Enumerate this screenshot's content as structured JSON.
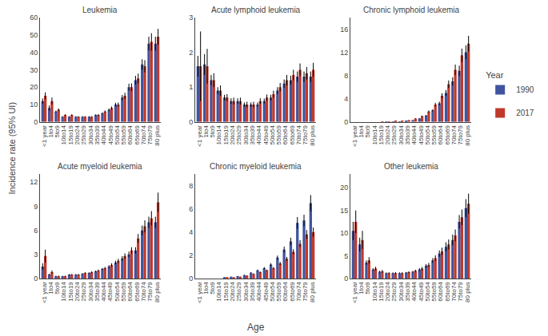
{
  "xlabel": "Age",
  "ylabel": "Incidence rate (95% UI)",
  "legend_title": "Year",
  "legend": "right",
  "grid": false,
  "chart_data": [
    {
      "type": "bar",
      "title": "Leukemia",
      "categories": [
        "<1 year",
        "1to4",
        "5to9",
        "10to14",
        "15to19",
        "20to24",
        "25to29",
        "30to34",
        "35to39",
        "40to44",
        "45to49",
        "50to54",
        "55to59",
        "60to64",
        "65to69",
        "70to74",
        "75to79",
        "80 plus"
      ],
      "ylim": [
        0,
        60
      ],
      "yticks": [
        0,
        10,
        20,
        30,
        40,
        50,
        60
      ],
      "series": [
        {
          "name": "1990",
          "color": "#4055A0",
          "values": [
            12,
            8,
            6,
            3,
            3,
            3,
            3,
            3,
            4,
            5,
            7,
            10,
            14,
            20,
            24,
            33,
            45,
            45
          ],
          "errors": [
            1.5,
            1.5,
            0.5,
            0.3,
            0.3,
            0.3,
            0.3,
            0.3,
            0.4,
            0.5,
            0.7,
            1.0,
            1.5,
            2.0,
            2.5,
            3.0,
            4.0,
            4.0
          ]
        },
        {
          "name": "2017",
          "color": "#C0392B",
          "values": [
            15,
            12,
            7,
            4,
            4,
            3,
            3,
            3,
            4,
            6,
            8,
            10,
            15,
            20,
            25,
            32,
            46,
            49
          ],
          "errors": [
            2.0,
            2.0,
            0.8,
            0.4,
            0.4,
            0.3,
            0.3,
            0.3,
            0.5,
            0.6,
            0.9,
            1.2,
            1.8,
            2.2,
            2.8,
            3.5,
            5.0,
            4.5
          ]
        }
      ]
    },
    {
      "type": "bar",
      "title": "Acute lymphoid leukemia",
      "categories": [
        "<1 year",
        "1to4",
        "5to9",
        "10to14",
        "15to19",
        "20to24",
        "25to29",
        "30to34",
        "35to39",
        "40to44",
        "45to49",
        "50to54",
        "55to59",
        "60to64",
        "65to69",
        "70to74",
        "75to79",
        "80 plus"
      ],
      "ylim": [
        0,
        3
      ],
      "yticks": [
        0,
        1,
        2,
        3
      ],
      "series": [
        {
          "name": "1990",
          "color": "#4055A0",
          "values": [
            1.6,
            1.65,
            1.2,
            0.9,
            0.7,
            0.6,
            0.6,
            0.5,
            0.5,
            0.5,
            0.6,
            0.7,
            0.9,
            1.1,
            1.2,
            1.3,
            1.3,
            1.3
          ],
          "errors": [
            0.3,
            0.3,
            0.15,
            0.1,
            0.08,
            0.08,
            0.08,
            0.06,
            0.06,
            0.06,
            0.07,
            0.08,
            0.1,
            0.12,
            0.13,
            0.15,
            0.15,
            0.15
          ]
        },
        {
          "name": "2017",
          "color": "#C0392B",
          "values": [
            1.6,
            1.6,
            1.2,
            0.9,
            0.7,
            0.6,
            0.6,
            0.5,
            0.5,
            0.6,
            0.7,
            0.8,
            1.0,
            1.2,
            1.35,
            1.5,
            1.4,
            1.5
          ],
          "errors": [
            1.0,
            0.5,
            0.2,
            0.15,
            0.1,
            0.1,
            0.1,
            0.08,
            0.08,
            0.08,
            0.09,
            0.1,
            0.12,
            0.15,
            0.15,
            0.18,
            0.18,
            0.2
          ]
        }
      ]
    },
    {
      "type": "bar",
      "title": "Chronic lymphoid leukemia",
      "categories": [
        "<1 year",
        "1to4",
        "5to9",
        "10to14",
        "15to19",
        "20to24",
        "25to29",
        "30to34",
        "35to39",
        "40to44",
        "45to49",
        "50to54",
        "55to59",
        "60to64",
        "65to69",
        "70to74",
        "75to79",
        "80 plus"
      ],
      "ylim": [
        0,
        18
      ],
      "yticks": [
        0,
        4,
        8,
        12,
        16
      ],
      "series": [
        {
          "name": "1990",
          "color": "#4055A0",
          "values": [
            0,
            0,
            0,
            0,
            0,
            0.05,
            0.1,
            0.1,
            0.2,
            0.3,
            0.6,
            1.1,
            2.0,
            3.2,
            5.0,
            7.0,
            8.8,
            12.0
          ],
          "errors": [
            0,
            0,
            0,
            0,
            0,
            0,
            0.01,
            0.01,
            0.02,
            0.03,
            0.06,
            0.1,
            0.2,
            0.3,
            0.5,
            0.7,
            0.9,
            1.2
          ]
        },
        {
          "name": "2017",
          "color": "#C0392B",
          "values": [
            0,
            0,
            0,
            0,
            0.05,
            0.1,
            0.15,
            0.2,
            0.3,
            0.6,
            1.0,
            1.8,
            3.0,
            4.5,
            6.5,
            9.0,
            11.5,
            13.5
          ],
          "errors": [
            0,
            0,
            0,
            0,
            0.005,
            0.01,
            0.015,
            0.02,
            0.03,
            0.06,
            0.1,
            0.18,
            0.3,
            0.45,
            0.65,
            0.9,
            1.15,
            1.35
          ]
        }
      ]
    },
    {
      "type": "bar",
      "title": "Acute myeloid leukemia",
      "categories": [
        "<1 year",
        "1to4",
        "5to9",
        "10to14",
        "15to19",
        "20to24",
        "25to29",
        "30to34",
        "35to39",
        "40to44",
        "45to49",
        "50to54",
        "55to59",
        "60to64",
        "65to69",
        "70to74",
        "75to79",
        "80 plus"
      ],
      "ylim": [
        0,
        13
      ],
      "yticks": [
        0,
        3,
        6,
        9,
        12
      ],
      "series": [
        {
          "name": "1990",
          "color": "#4055A0",
          "values": [
            1.5,
            0.5,
            0.3,
            0.3,
            0.5,
            0.5,
            0.6,
            0.7,
            0.9,
            1.2,
            1.5,
            2.0,
            2.5,
            3.0,
            3.5,
            6.0,
            7.0,
            7.0
          ],
          "errors": [
            0.4,
            0.1,
            0.05,
            0.04,
            0.06,
            0.06,
            0.07,
            0.08,
            0.1,
            0.13,
            0.18,
            0.22,
            0.28,
            0.35,
            0.4,
            0.6,
            0.7,
            0.7
          ]
        },
        {
          "name": "2017",
          "color": "#C0392B",
          "values": [
            2.8,
            0.8,
            0.3,
            0.3,
            0.5,
            0.5,
            0.7,
            0.8,
            1.0,
            1.3,
            1.7,
            2.2,
            2.8,
            3.5,
            5.0,
            6.5,
            7.5,
            9.5
          ],
          "errors": [
            0.8,
            0.2,
            0.06,
            0.05,
            0.07,
            0.07,
            0.09,
            0.1,
            0.12,
            0.15,
            0.2,
            0.26,
            0.33,
            0.4,
            0.55,
            0.75,
            0.9,
            1.2
          ]
        }
      ]
    },
    {
      "type": "bar",
      "title": "Chronic myeloid leukemia",
      "categories": [
        "<1 year",
        "1to4",
        "5to9",
        "10to14",
        "15to19",
        "20to24",
        "25to29",
        "30to34",
        "35to39",
        "40to44",
        "45to49",
        "50to54",
        "55to59",
        "60to64",
        "65to69",
        "70to74",
        "75to79",
        "80 plus"
      ],
      "ylim": [
        0,
        9
      ],
      "yticks": [
        0,
        2,
        4,
        6,
        8
      ],
      "series": [
        {
          "name": "1990",
          "color": "#4055A0",
          "values": [
            0,
            0,
            0,
            0,
            0.1,
            0.15,
            0.2,
            0.3,
            0.5,
            0.7,
            0.9,
            1.2,
            1.8,
            2.5,
            3.2,
            4.8,
            5.0,
            6.5
          ],
          "errors": [
            0,
            0,
            0,
            0,
            0.01,
            0.015,
            0.02,
            0.03,
            0.05,
            0.07,
            0.09,
            0.12,
            0.18,
            0.25,
            0.32,
            0.5,
            0.5,
            0.7
          ]
        },
        {
          "name": "2017",
          "color": "#C0392B",
          "values": [
            0,
            0,
            0,
            0,
            0.08,
            0.1,
            0.15,
            0.25,
            0.4,
            0.55,
            0.7,
            0.9,
            1.3,
            1.7,
            2.3,
            3.0,
            3.8,
            4.0
          ],
          "errors": [
            0,
            0,
            0,
            0,
            0.01,
            0.01,
            0.015,
            0.025,
            0.04,
            0.055,
            0.07,
            0.09,
            0.13,
            0.17,
            0.23,
            0.3,
            0.38,
            0.4
          ]
        }
      ]
    },
    {
      "type": "bar",
      "title": "Other leukemia",
      "categories": [
        "<1 year",
        "1to4",
        "5to9",
        "10to14",
        "15to19",
        "20to24",
        "25to29",
        "30to34",
        "35to39",
        "40to44",
        "45to49",
        "50to54",
        "55to59",
        "60to64",
        "65to69",
        "70to74",
        "75to79",
        "80 plus"
      ],
      "ylim": [
        0,
        23
      ],
      "yticks": [
        0,
        5,
        10,
        15,
        20
      ],
      "series": [
        {
          "name": "1990",
          "color": "#4055A0",
          "values": [
            10.5,
            7.5,
            3.5,
            2.0,
            1.5,
            1.2,
            1.2,
            1.2,
            1.3,
            1.5,
            2.0,
            2.8,
            4.0,
            5.5,
            7.0,
            8.5,
            12.5,
            15.5
          ],
          "errors": [
            2.0,
            1.5,
            0.5,
            0.3,
            0.2,
            0.15,
            0.15,
            0.15,
            0.15,
            0.2,
            0.3,
            0.4,
            0.5,
            0.7,
            1.0,
            1.2,
            1.5,
            2.0
          ]
        },
        {
          "name": "2017",
          "color": "#C0392B",
          "values": [
            12.5,
            8.5,
            4.0,
            2.2,
            1.6,
            1.2,
            1.2,
            1.2,
            1.4,
            1.7,
            2.2,
            3.0,
            4.5,
            6.0,
            7.5,
            9.5,
            13.5,
            16.5
          ],
          "errors": [
            2.5,
            2.0,
            0.7,
            0.4,
            0.3,
            0.2,
            0.2,
            0.2,
            0.2,
            0.25,
            0.35,
            0.45,
            0.6,
            0.8,
            1.1,
            1.3,
            1.7,
            2.2
          ]
        }
      ]
    }
  ]
}
